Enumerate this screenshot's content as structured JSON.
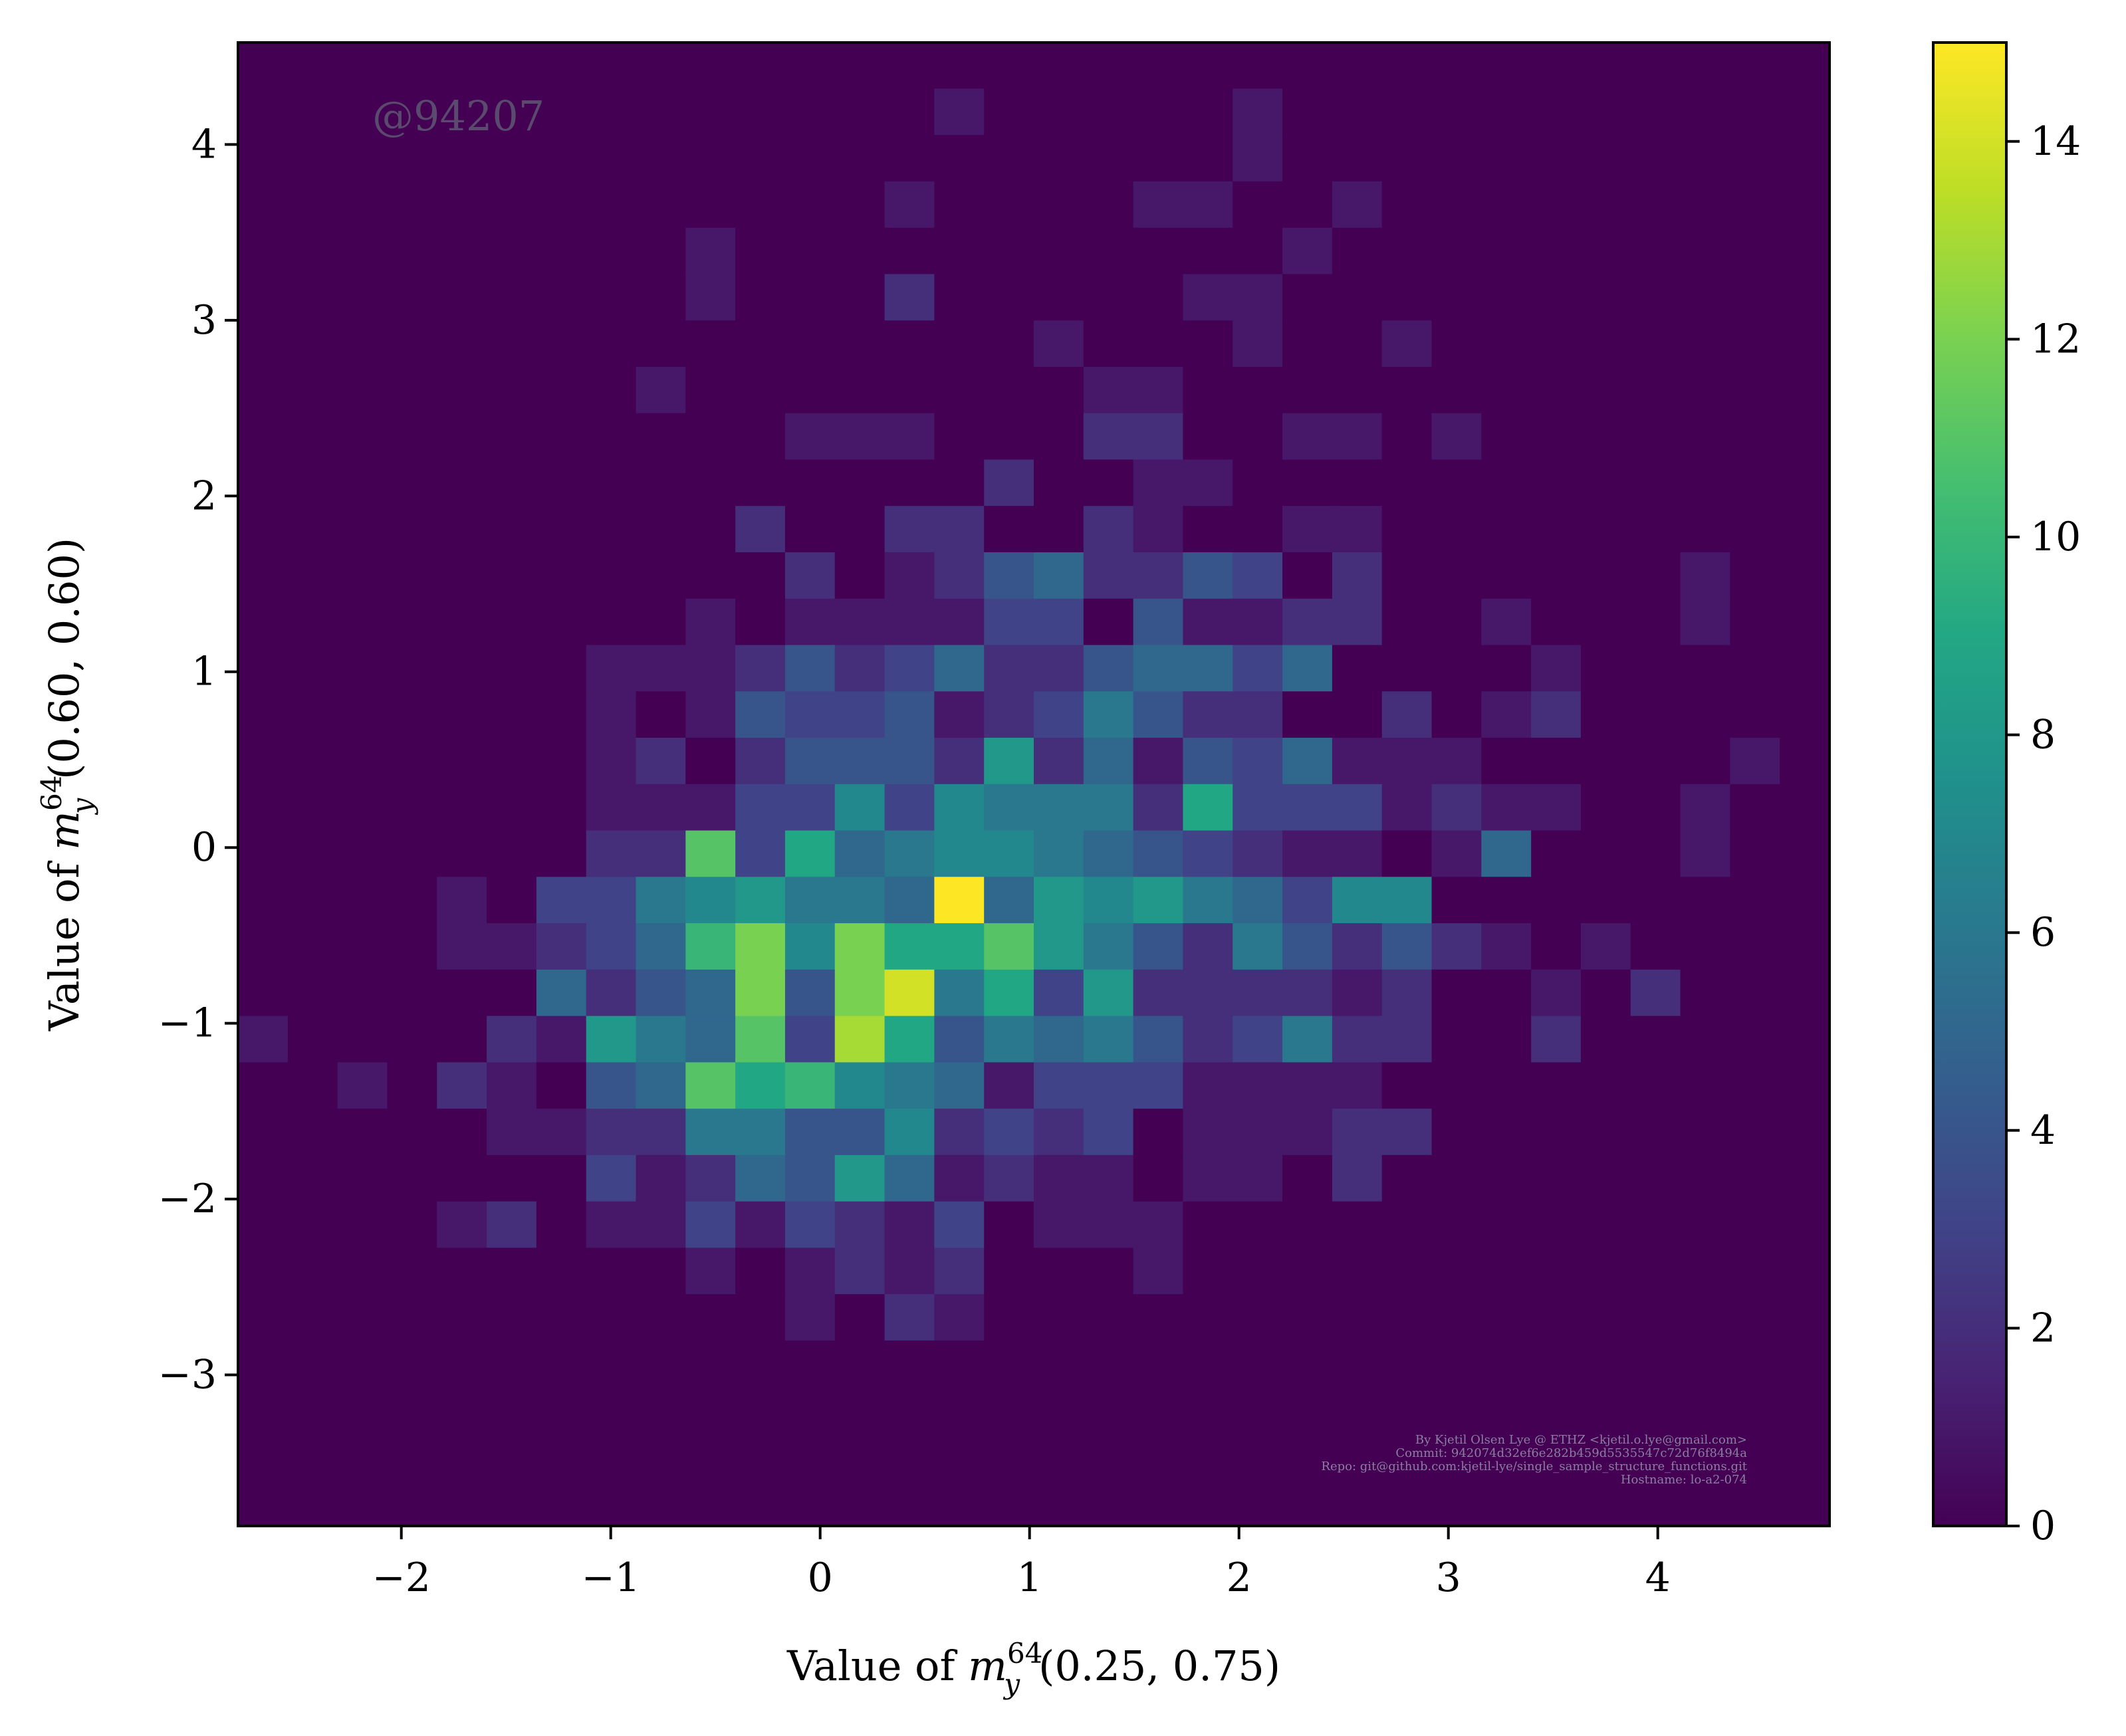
{
  "chart_data": {
    "type": "heatmap",
    "xlabel": {
      "prefix": "Value of ",
      "var": "m",
      "sup": "64",
      "sub": "y",
      "args": "(0.25, 0.75)"
    },
    "ylabel": {
      "prefix": "Value of ",
      "var": "m",
      "sup": "64",
      "sub": "y",
      "args": "(0.60, 0.60)"
    },
    "xlim": [
      -2.78,
      4.82
    ],
    "ylim": [
      -3.86,
      4.58
    ],
    "x_ticks": [
      -2,
      -1,
      0,
      1,
      2,
      3,
      4
    ],
    "x_tick_labels": [
      "−2",
      "−1",
      "0",
      "1",
      "2",
      "3",
      "4"
    ],
    "y_ticks": [
      -3,
      -2,
      -1,
      0,
      1,
      2,
      3,
      4
    ],
    "y_tick_labels": [
      "−3",
      "−2",
      "−1",
      "0",
      "1",
      "2",
      "3",
      "4"
    ],
    "bin_x0": -2.78,
    "bin_dx": 0.2375,
    "bin_y0": -3.86,
    "bin_dy": 0.2638,
    "nx": 32,
    "ny": 32,
    "colormap": "viridis",
    "colorbar": {
      "min": 0,
      "max": 15,
      "ticks": [
        0,
        2,
        4,
        6,
        8,
        10,
        12,
        14
      ],
      "tick_labels": [
        "0",
        "2",
        "4",
        "6",
        "8",
        "10",
        "12",
        "14"
      ]
    },
    "grid": false,
    "counts_description": "rows listed from top (high y) to bottom (low y); each row has 32 bin counts",
    "counts": [
      [
        0,
        0,
        0,
        0,
        0,
        0,
        0,
        0,
        0,
        0,
        0,
        0,
        0,
        0,
        0,
        0,
        0,
        0,
        0,
        0,
        0,
        0,
        0,
        0,
        0,
        0,
        0,
        0,
        0,
        0,
        0,
        0
      ],
      [
        0,
        0,
        0,
        0,
        0,
        0,
        0,
        0,
        0,
        0,
        0,
        0,
        0,
        0,
        1,
        0,
        0,
        0,
        0,
        0,
        1,
        0,
        0,
        0,
        0,
        0,
        0,
        0,
        0,
        0,
        0,
        0
      ],
      [
        0,
        0,
        0,
        0,
        0,
        0,
        0,
        0,
        0,
        0,
        0,
        0,
        0,
        0,
        0,
        0,
        0,
        0,
        0,
        0,
        1,
        0,
        0,
        0,
        0,
        0,
        0,
        0,
        0,
        0,
        0,
        0
      ],
      [
        0,
        0,
        0,
        0,
        0,
        0,
        0,
        0,
        0,
        0,
        0,
        0,
        0,
        1,
        0,
        0,
        0,
        0,
        1,
        1,
        0,
        0,
        1,
        0,
        0,
        0,
        0,
        0,
        0,
        0,
        0,
        0
      ],
      [
        0,
        0,
        0,
        0,
        0,
        0,
        0,
        0,
        0,
        1,
        0,
        0,
        0,
        0,
        0,
        0,
        0,
        0,
        0,
        0,
        0,
        1,
        0,
        0,
        0,
        0,
        0,
        0,
        0,
        0,
        0,
        0
      ],
      [
        0,
        0,
        0,
        0,
        0,
        0,
        0,
        0,
        0,
        1,
        0,
        0,
        0,
        2,
        0,
        0,
        0,
        0,
        0,
        1,
        1,
        0,
        0,
        0,
        0,
        0,
        0,
        0,
        0,
        0,
        0,
        0
      ],
      [
        0,
        0,
        0,
        0,
        0,
        0,
        0,
        0,
        0,
        0,
        0,
        0,
        0,
        0,
        0,
        0,
        1,
        0,
        0,
        0,
        1,
        0,
        0,
        1,
        0,
        0,
        0,
        0,
        0,
        0,
        0,
        0
      ],
      [
        0,
        0,
        0,
        0,
        0,
        0,
        0,
        0,
        1,
        0,
        0,
        0,
        0,
        0,
        0,
        0,
        0,
        1,
        1,
        0,
        0,
        0,
        0,
        0,
        0,
        0,
        0,
        0,
        0,
        0,
        0,
        0
      ],
      [
        0,
        0,
        0,
        0,
        0,
        0,
        0,
        0,
        0,
        0,
        0,
        1,
        1,
        1,
        0,
        0,
        0,
        2,
        2,
        0,
        0,
        1,
        1,
        0,
        1,
        0,
        0,
        0,
        0,
        0,
        0,
        0
      ],
      [
        0,
        0,
        0,
        0,
        0,
        0,
        0,
        0,
        0,
        0,
        0,
        0,
        0,
        0,
        0,
        2,
        0,
        0,
        1,
        1,
        0,
        0,
        0,
        0,
        0,
        0,
        0,
        0,
        0,
        0,
        0,
        0
      ],
      [
        0,
        0,
        0,
        0,
        0,
        0,
        0,
        0,
        0,
        0,
        2,
        0,
        0,
        2,
        2,
        0,
        0,
        2,
        1,
        0,
        0,
        1,
        1,
        0,
        0,
        0,
        0,
        0,
        0,
        0,
        0,
        0
      ],
      [
        0,
        0,
        0,
        0,
        0,
        0,
        0,
        0,
        0,
        0,
        0,
        2,
        0,
        1,
        2,
        4,
        5,
        2,
        2,
        4,
        3,
        0,
        2,
        0,
        0,
        0,
        0,
        0,
        0,
        1,
        0,
        0
      ],
      [
        0,
        0,
        0,
        0,
        0,
        0,
        0,
        0,
        0,
        1,
        0,
        1,
        1,
        1,
        1,
        3,
        3,
        0,
        4,
        1,
        1,
        2,
        2,
        0,
        0,
        1,
        0,
        0,
        0,
        1,
        0,
        0
      ],
      [
        0,
        0,
        0,
        0,
        0,
        0,
        0,
        1,
        1,
        1,
        2,
        4,
        2,
        3,
        5,
        2,
        2,
        4,
        5,
        5,
        3,
        5,
        0,
        0,
        0,
        0,
        1,
        0,
        0,
        0,
        0,
        0
      ],
      [
        0,
        0,
        0,
        0,
        0,
        0,
        0,
        1,
        0,
        1,
        4,
        3,
        3,
        4,
        1,
        2,
        3,
        6,
        4,
        2,
        2,
        0,
        0,
        2,
        0,
        1,
        2,
        0,
        0,
        0,
        0,
        0
      ],
      [
        0,
        0,
        0,
        0,
        0,
        0,
        0,
        1,
        2,
        0,
        2,
        4,
        4,
        4,
        2,
        8,
        2,
        5,
        1,
        4,
        3,
        5,
        1,
        1,
        1,
        0,
        0,
        0,
        0,
        0,
        1,
        0
      ],
      [
        0,
        0,
        0,
        0,
        0,
        0,
        0,
        1,
        1,
        1,
        3,
        3,
        7,
        3,
        7,
        6,
        6,
        6,
        2,
        9,
        3,
        3,
        3,
        1,
        2,
        1,
        1,
        0,
        0,
        1,
        0,
        0
      ],
      [
        0,
        0,
        0,
        0,
        0,
        0,
        0,
        2,
        2,
        11,
        3,
        9,
        5,
        6,
        7,
        7,
        6,
        5,
        4,
        3,
        2,
        1,
        1,
        0,
        1,
        5,
        0,
        0,
        0,
        1,
        0,
        0
      ],
      [
        0,
        0,
        0,
        0,
        1,
        0,
        3,
        3,
        6,
        7,
        8,
        6,
        6,
        5,
        15,
        5,
        8,
        7,
        8,
        6,
        5,
        3,
        7,
        7,
        0,
        0,
        0,
        0,
        0,
        0,
        0,
        0
      ],
      [
        0,
        0,
        0,
        0,
        1,
        1,
        2,
        3,
        5,
        10,
        12,
        7,
        12,
        9,
        9,
        11,
        8,
        6,
        4,
        2,
        6,
        4,
        2,
        4,
        2,
        1,
        0,
        1,
        0,
        0,
        0,
        0
      ],
      [
        0,
        0,
        0,
        0,
        0,
        0,
        5,
        2,
        4,
        5,
        12,
        4,
        12,
        14,
        6,
        9,
        3,
        8,
        2,
        2,
        2,
        2,
        1,
        2,
        0,
        0,
        1,
        0,
        2,
        0,
        0,
        0
      ],
      [
        1,
        0,
        0,
        0,
        0,
        2,
        1,
        8,
        6,
        5,
        11,
        3,
        13,
        9,
        4,
        6,
        5,
        6,
        4,
        2,
        3,
        6,
        2,
        2,
        0,
        0,
        2,
        0,
        0,
        0,
        0,
        0
      ],
      [
        0,
        0,
        1,
        0,
        2,
        1,
        0,
        4,
        5,
        11,
        9,
        10,
        7,
        6,
        5,
        1,
        3,
        3,
        3,
        1,
        1,
        1,
        1,
        0,
        0,
        0,
        0,
        0,
        0,
        0,
        0,
        0
      ],
      [
        0,
        0,
        0,
        0,
        0,
        1,
        1,
        2,
        2,
        6,
        6,
        4,
        4,
        7,
        2,
        3,
        2,
        3,
        0,
        1,
        1,
        1,
        2,
        2,
        0,
        0,
        0,
        0,
        0,
        0,
        0,
        0
      ],
      [
        0,
        0,
        0,
        0,
        0,
        0,
        0,
        3,
        1,
        2,
        5,
        4,
        8,
        5,
        1,
        2,
        1,
        1,
        0,
        1,
        1,
        0,
        2,
        0,
        0,
        0,
        0,
        0,
        0,
        0,
        0,
        0
      ],
      [
        0,
        0,
        0,
        0,
        1,
        2,
        0,
        1,
        1,
        3,
        1,
        3,
        2,
        1,
        3,
        0,
        1,
        1,
        1,
        0,
        0,
        0,
        0,
        0,
        0,
        0,
        0,
        0,
        0,
        0,
        0,
        0
      ],
      [
        0,
        0,
        0,
        0,
        0,
        0,
        0,
        0,
        0,
        1,
        0,
        1,
        2,
        1,
        2,
        0,
        0,
        0,
        1,
        0,
        0,
        0,
        0,
        0,
        0,
        0,
        0,
        0,
        0,
        0,
        0,
        0
      ],
      [
        0,
        0,
        0,
        0,
        0,
        0,
        0,
        0,
        0,
        0,
        0,
        1,
        0,
        2,
        1,
        0,
        0,
        0,
        0,
        0,
        0,
        0,
        0,
        0,
        0,
        0,
        0,
        0,
        0,
        0,
        0,
        0
      ],
      [
        0,
        0,
        0,
        0,
        0,
        0,
        0,
        0,
        0,
        0,
        0,
        0,
        0,
        0,
        0,
        0,
        0,
        0,
        0,
        0,
        0,
        0,
        0,
        0,
        0,
        0,
        0,
        0,
        0,
        0,
        0,
        0
      ],
      [
        0,
        0,
        0,
        0,
        0,
        0,
        0,
        0,
        0,
        0,
        0,
        0,
        0,
        0,
        0,
        0,
        0,
        0,
        0,
        0,
        0,
        0,
        0,
        0,
        0,
        0,
        0,
        0,
        0,
        0,
        0,
        0
      ],
      [
        0,
        0,
        0,
        0,
        0,
        0,
        0,
        0,
        0,
        0,
        0,
        0,
        0,
        0,
        0,
        0,
        0,
        0,
        0,
        0,
        0,
        0,
        0,
        0,
        0,
        0,
        0,
        0,
        0,
        0,
        0,
        0
      ],
      [
        0,
        0,
        0,
        0,
        0,
        0,
        0,
        0,
        0,
        0,
        0,
        0,
        0,
        0,
        0,
        0,
        0,
        0,
        0,
        0,
        0,
        0,
        0,
        0,
        0,
        0,
        0,
        0,
        0,
        0,
        0,
        0
      ]
    ]
  },
  "watermark": "@94207",
  "credit_lines": [
    "By Kjetil Olsen Lye @ ETHZ <kjetil.o.lye@gmail.com>",
    "Commit: 942074d32ef6e282b459d5535547c72d76f8494a",
    "Repo: git@github.com:kjetil-lye/single_sample_structure_functions.git",
    "Hostname: lo-a2-074"
  ]
}
